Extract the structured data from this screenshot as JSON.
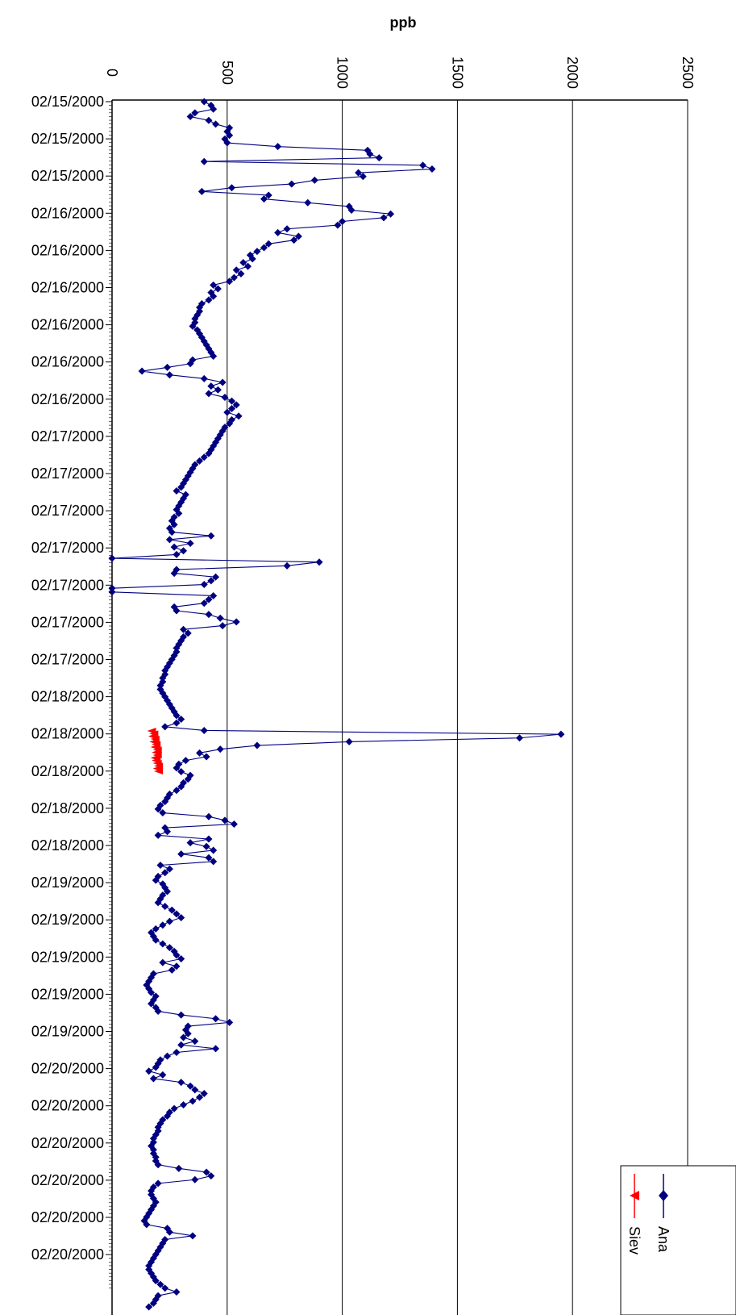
{
  "chart_data": {
    "type": "line",
    "orientation": "rotated-90",
    "ylabel": "ppb",
    "ylim": [
      0,
      2500
    ],
    "ytick_labels": [
      "0",
      "500",
      "1000",
      "1500",
      "2000",
      "2500"
    ],
    "grid": true,
    "legend_position": "bottom-right",
    "date_labels": [
      "02/15/2000",
      "02/15/2000",
      "02/15/2000",
      "02/16/2000",
      "02/16/2000",
      "02/16/2000",
      "02/16/2000",
      "02/16/2000",
      "02/16/2000",
      "02/17/2000",
      "02/17/2000",
      "02/17/2000",
      "02/17/2000",
      "02/17/2000",
      "02/17/2000",
      "02/17/2000",
      "02/18/2000",
      "02/18/2000",
      "02/18/2000",
      "02/18/2000",
      "02/18/2000",
      "02/19/2000",
      "02/19/2000",
      "02/19/2000",
      "02/19/2000",
      "02/19/2000",
      "02/20/2000",
      "02/20/2000",
      "02/20/2000",
      "02/20/2000",
      "02/20/2000",
      "02/20/2000"
    ],
    "series": [
      {
        "name": "Ana",
        "color": "#000080",
        "marker": "diamond",
        "values": [
          400,
          430,
          440,
          360,
          340,
          420,
          450,
          510,
          500,
          510,
          490,
          500,
          720,
          1110,
          1120,
          1160,
          400,
          1350,
          1390,
          1070,
          1090,
          880,
          780,
          520,
          390,
          680,
          660,
          850,
          1030,
          1040,
          1210,
          1180,
          1000,
          980,
          760,
          720,
          810,
          790,
          680,
          660,
          630,
          600,
          610,
          570,
          590,
          540,
          560,
          530,
          510,
          440,
          460,
          430,
          440,
          420,
          390,
          380,
          380,
          370,
          360,
          360,
          350,
          370,
          380,
          390,
          400,
          410,
          420,
          430,
          440,
          350,
          340,
          240,
          130,
          250,
          400,
          480,
          430,
          460,
          420,
          490,
          520,
          540,
          520,
          500,
          550,
          520,
          510,
          490,
          480,
          470,
          460,
          450,
          440,
          430,
          420,
          400,
          380,
          360,
          350,
          340,
          330,
          320,
          310,
          300,
          280,
          320,
          310,
          300,
          290,
          280,
          290,
          270,
          260,
          270,
          250,
          260,
          430,
          250,
          340,
          270,
          310,
          280,
          0,
          900,
          760,
          280,
          270,
          450,
          430,
          400,
          0,
          0,
          440,
          420,
          400,
          270,
          280,
          420,
          470,
          540,
          480,
          310,
          330,
          310,
          300,
          290,
          280,
          280,
          270,
          260,
          250,
          240,
          230,
          230,
          220,
          220,
          210,
          210,
          220,
          230,
          240,
          250,
          260,
          270,
          280,
          300,
          280,
          230,
          400,
          1950,
          1770,
          1030,
          630,
          470,
          380,
          410,
          320,
          290,
          280,
          300,
          340,
          330,
          310,
          300,
          280,
          250,
          240,
          230,
          210,
          200,
          220,
          420,
          490,
          530,
          230,
          240,
          200,
          420,
          340,
          410,
          440,
          300,
          420,
          440,
          210,
          250,
          230,
          200,
          190,
          220,
          230,
          240,
          220,
          210,
          200,
          230,
          260,
          280,
          300,
          250,
          220,
          190,
          170,
          180,
          190,
          220,
          250,
          270,
          280,
          300,
          220,
          280,
          260,
          180,
          170,
          160,
          150,
          160,
          170,
          190,
          180,
          170,
          190,
          200,
          300,
          450,
          510,
          330,
          320,
          330,
          310,
          360,
          300,
          450,
          280,
          240,
          210,
          200,
          190,
          160,
          220,
          180,
          300,
          340,
          360,
          400,
          380,
          350,
          310,
          270,
          250,
          240,
          220,
          210,
          200,
          200,
          190,
          180,
          180,
          170,
          180,
          180,
          190,
          190,
          200,
          290,
          410,
          430,
          360,
          200,
          180,
          170,
          170,
          180,
          190,
          180,
          170,
          160,
          150,
          140,
          150,
          240,
          250,
          350,
          230,
          220,
          210,
          200,
          190,
          180,
          170,
          160,
          160,
          170,
          180,
          190,
          210,
          230,
          280,
          200,
          190,
          180,
          160
        ]
      },
      {
        "name": "Siev",
        "color": "#ff0000",
        "marker": "triangle",
        "values": [
          170,
          180,
          175,
          185,
          180,
          190,
          185,
          195,
          190,
          195,
          185,
          190,
          195,
          200,
          195,
          200
        ]
      }
    ]
  },
  "legend": {
    "ana_label": "Ana",
    "siev_label": "Siev"
  }
}
